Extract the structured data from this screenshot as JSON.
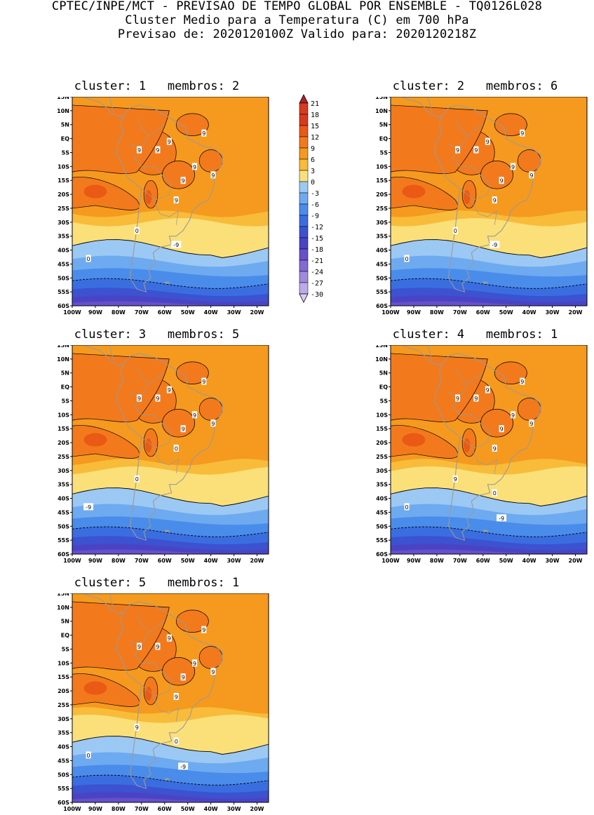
{
  "header": {
    "line1": "CPTEC/INPE/MCT - PREVISAO DE TEMPO GLOBAL POR ENSEMBLE - TQ0126L028",
    "line2": "Cluster Medio para a Temperatura (C) em 700 hPa",
    "line3": "Previsao de: 2020120100Z   Valido para: 2020120218Z"
  },
  "axes": {
    "lat_labels": [
      "15N",
      "10N",
      "5N",
      "EQ",
      "5S",
      "10S",
      "15S",
      "20S",
      "25S",
      "30S",
      "35S",
      "40S",
      "45S",
      "50S",
      "55S",
      "60S"
    ],
    "lon_labels": [
      "100W",
      "90W",
      "80W",
      "70W",
      "60W",
      "50W",
      "40W",
      "30W",
      "20W"
    ]
  },
  "colorbar": {
    "levels": [
      "21",
      "18",
      "15",
      "12",
      "9",
      "6",
      "3",
      "0",
      "-3",
      "-6",
      "-9",
      "-12",
      "-15",
      "-18",
      "-21",
      "-24",
      "-27",
      "-30"
    ],
    "colors": [
      "#b0202a",
      "#d83a1e",
      "#ea5a14",
      "#f27a1c",
      "#f59a1e",
      "#f8bc3a",
      "#fbe07a",
      "#9cc8f4",
      "#6eaaf0",
      "#4a8cea",
      "#3a6ee0",
      "#3c52d0",
      "#4a44c4",
      "#6650cc",
      "#8468d4",
      "#a08ade",
      "#bcaaea",
      "#d8ccf4"
    ]
  },
  "panels": [
    {
      "title": "cluster: 1   membros: 2",
      "contour_labels": [
        "9",
        "9",
        "9",
        "9",
        "9",
        "9",
        "9",
        "9",
        "0",
        "0",
        "-9"
      ]
    },
    {
      "title": "cluster: 2   membros: 6",
      "contour_labels": [
        "9",
        "9",
        "9",
        "9",
        "9",
        "9",
        "9",
        "9",
        "0",
        "0",
        "-9"
      ]
    },
    {
      "title": "cluster: 3   membros: 5",
      "contour_labels": [
        "9",
        "9",
        "9",
        "9",
        "9",
        "9",
        "9",
        "0",
        "0",
        "-9"
      ]
    },
    {
      "title": "cluster: 4   membros: 1",
      "contour_labels": [
        "9",
        "9",
        "9",
        "9",
        "9",
        "9",
        "9",
        "9",
        "9",
        "0",
        "0",
        "-9"
      ]
    },
    {
      "title": "cluster: 5   membros: 1",
      "contour_labels": [
        "9",
        "9",
        "9",
        "9",
        "9",
        "9",
        "9",
        "9",
        "9",
        "0",
        "0",
        "-9"
      ]
    }
  ]
}
